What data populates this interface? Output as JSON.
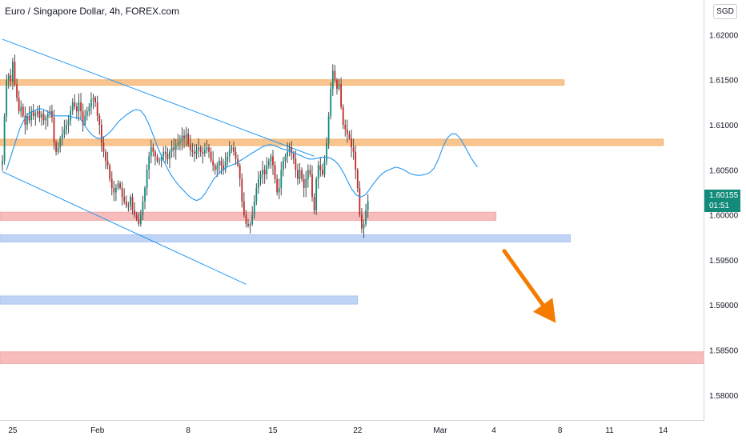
{
  "header": {
    "title": "Euro / Singapore Dollar, 4h, FOREX.com",
    "currency": "SGD"
  },
  "price_tag": {
    "price": "1.60155",
    "countdown": "01:51",
    "color": "#138b7b"
  },
  "colors": {
    "up": "#138b7b",
    "down": "#c62828",
    "wick": "#4a4a4a",
    "ma": "#2196f3",
    "trendline": "#2196f3",
    "orange_zone": "#f6b26b",
    "red_zone": "#f4a7a7",
    "blue_zone": "#a9c6f0",
    "arrow": "#f57c00",
    "axis_text": "#131722"
  },
  "chart_data": {
    "type": "candlestick",
    "symbol": "EURSGD",
    "timeframe": "4h",
    "ylim": [
      1.5775,
      1.6235
    ],
    "y_ticks": [
      "1.62000",
      "1.61500",
      "1.61000",
      "1.60500",
      "1.60000",
      "1.59500",
      "1.59000",
      "1.58500",
      "1.58000"
    ],
    "x_ticks": [
      {
        "label": "25",
        "bar": 5
      },
      {
        "label": "Feb",
        "bar": 46
      },
      {
        "label": "8",
        "bar": 90
      },
      {
        "label": "15",
        "bar": 131
      },
      {
        "label": "22",
        "bar": 172
      },
      {
        "label": "Mar",
        "bar": 212
      },
      {
        "label": "4",
        "bar": 238
      },
      {
        "label": "8",
        "bar": 270
      },
      {
        "label": "11",
        "bar": 294
      },
      {
        "label": "14",
        "bar": 320
      }
    ],
    "candles_close": [
      1.606,
      1.611,
      1.615,
      1.6155,
      1.6148,
      1.617,
      1.6145,
      1.613,
      1.6115,
      1.612,
      1.611,
      1.61,
      1.611,
      1.6105,
      1.6115,
      1.611,
      1.6112,
      1.6115,
      1.6108,
      1.6112,
      1.6105,
      1.6108,
      1.6112,
      1.6115,
      1.6108,
      1.608,
      1.607,
      1.6075,
      1.6085,
      1.609,
      1.6095,
      1.61,
      1.6105,
      1.6115,
      1.6125,
      1.612,
      1.6115,
      1.6125,
      1.6115,
      1.61,
      1.611,
      1.6115,
      1.612,
      1.6128,
      1.613,
      1.6125,
      1.611,
      1.61,
      1.608,
      1.607,
      1.606,
      1.6055,
      1.604,
      1.603,
      1.6025,
      1.603,
      1.6035,
      1.603,
      1.602,
      1.6015,
      1.601,
      1.601,
      1.602,
      1.6005,
      1.6,
      1.5995,
      1.599,
      1.6,
      1.6015,
      1.603,
      1.605,
      1.6065,
      1.6075,
      1.607,
      1.6065,
      1.606,
      1.606,
      1.6065,
      1.607,
      1.6068,
      1.6062,
      1.607,
      1.6075,
      1.6072,
      1.6078,
      1.608,
      1.6082,
      1.6088,
      1.6085,
      1.609,
      1.6078,
      1.6072,
      1.607,
      1.6068,
      1.6072,
      1.6075,
      1.607,
      1.6068,
      1.6072,
      1.6075,
      1.607,
      1.606,
      1.6055,
      1.605,
      1.6055,
      1.606,
      1.6055,
      1.605,
      1.606,
      1.6065,
      1.6072,
      1.6075,
      1.607,
      1.6062,
      1.6055,
      1.604,
      1.6015,
      1.6,
      1.599,
      1.5988,
      1.599,
      1.6,
      1.6015,
      1.603,
      1.604,
      1.6045,
      1.605,
      1.6045,
      1.6055,
      1.606,
      1.6065,
      1.6055,
      1.604,
      1.6025,
      1.603,
      1.605,
      1.606,
      1.6065,
      1.607,
      1.6075,
      1.6068,
      1.6062,
      1.605,
      1.604,
      1.605,
      1.604,
      1.603,
      1.604,
      1.605,
      1.6045,
      1.602,
      1.6005,
      1.604,
      1.6055,
      1.605,
      1.6045,
      1.606,
      1.608,
      1.611,
      1.614,
      1.616,
      1.615,
      1.614,
      1.6145,
      1.612,
      1.61,
      1.6095,
      1.609,
      1.6085,
      1.6075,
      1.607,
      1.605,
      1.603,
      1.6,
      1.5985,
      1.599,
      1.6005,
      1.6015
    ],
    "series": [
      {
        "name": "",
        "type": "moving-average",
        "values": [
          1.605,
          1.6065,
          1.608,
          1.6095,
          1.6105,
          1.6112,
          1.6115,
          1.6117,
          1.6118,
          1.6116,
          1.6113,
          1.611,
          1.611,
          1.611,
          1.611,
          1.6109,
          1.6108,
          1.6107,
          1.61,
          1.6093,
          1.6088,
          1.6085,
          1.6085,
          1.6088,
          1.6092,
          1.6098,
          1.6104,
          1.6108,
          1.6112,
          1.6115,
          1.6117,
          1.6116,
          1.611,
          1.61,
          1.6088,
          1.6075,
          1.6064,
          1.6054,
          1.6045,
          1.6038,
          1.6032,
          1.6027,
          1.6022,
          1.6018,
          1.6016,
          1.6018,
          1.6024,
          1.6032,
          1.604,
          1.6045,
          1.605,
          1.6053,
          1.6055,
          1.6057,
          1.606,
          1.6063,
          1.6066,
          1.6069,
          1.6072,
          1.6075,
          1.6077,
          1.6078,
          1.6077,
          1.6075,
          1.6073,
          1.6072,
          1.607,
          1.6068,
          1.6066,
          1.6064,
          1.6062,
          1.6062,
          1.6063,
          1.6064,
          1.6064,
          1.6063,
          1.606,
          1.6055,
          1.6047,
          1.6037,
          1.6028,
          1.6022,
          1.602,
          1.6022,
          1.6028,
          1.6035,
          1.6041,
          1.6046,
          1.6049,
          1.6051,
          1.6053,
          1.6052,
          1.605,
          1.6047,
          1.6045,
          1.6044,
          1.6044,
          1.6045,
          1.6047,
          1.6052,
          1.6062,
          1.6075,
          1.6085,
          1.609,
          1.609,
          1.6085,
          1.6077,
          1.6068,
          1.606,
          1.6053
        ]
      }
    ],
    "horizontal_zones": [
      {
        "color": "orange",
        "price_top": 1.615,
        "price_bottom": 1.6144,
        "from_bar": 0,
        "to_bar": 272
      },
      {
        "color": "orange",
        "price_top": 1.6084,
        "price_bottom": 1.6077,
        "from_bar": 0,
        "to_bar": 320
      },
      {
        "color": "red",
        "price_top": 1.6003,
        "price_bottom": 1.5994,
        "from_bar": 0,
        "to_bar": 239
      },
      {
        "color": "blue",
        "price_top": 1.5978,
        "price_bottom": 1.597,
        "from_bar": 0,
        "to_bar": 275
      },
      {
        "color": "blue",
        "price_top": 1.591,
        "price_bottom": 1.5901,
        "from_bar": 0,
        "to_bar": 172
      },
      {
        "color": "red",
        "price_top": 1.5848,
        "price_bottom": 1.5835,
        "from_bar": 0,
        "to_bar": 348
      }
    ],
    "trendlines": [
      {
        "from": {
          "bar": 0,
          "price": 1.6195
        },
        "to": {
          "bar": 151,
          "price": 1.6065
        }
      },
      {
        "from": {
          "bar": 0,
          "price": 1.6048
        },
        "to": {
          "bar": 118,
          "price": 1.5923
        }
      }
    ],
    "arrow": {
      "from": {
        "bar": 243,
        "price": 1.596
      },
      "to": {
        "bar": 268,
        "price": 1.588
      },
      "direction": "down"
    }
  }
}
